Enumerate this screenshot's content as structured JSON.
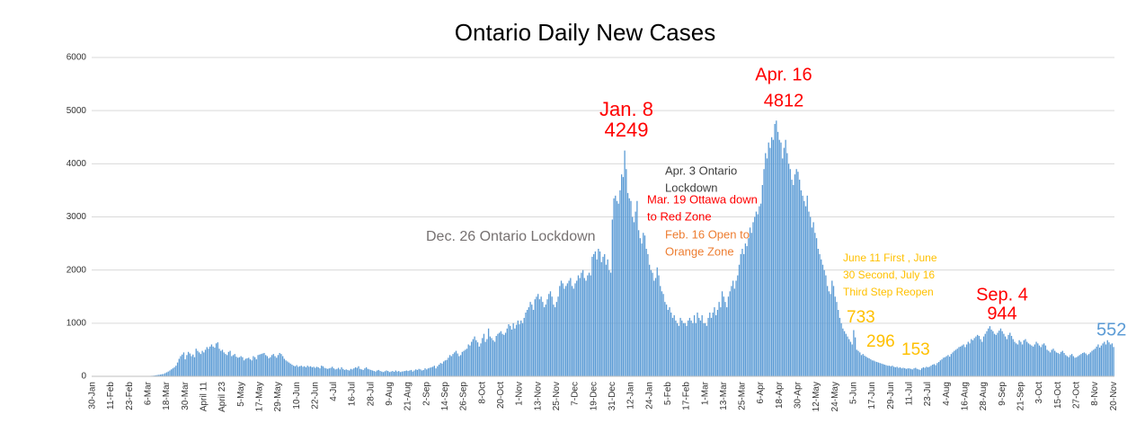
{
  "chart_data": {
    "type": "bar",
    "title": "Ontario Daily New Cases",
    "color": "#5b9bd5",
    "grid": true,
    "ylim": [
      0,
      6000
    ],
    "yticks": [
      0,
      1000,
      2000,
      3000,
      4000,
      5000,
      6000
    ],
    "categories": [
      "30-Jan",
      null,
      null,
      null,
      null,
      null,
      null,
      null,
      null,
      null,
      null,
      null,
      "11-Feb",
      null,
      null,
      null,
      null,
      null,
      null,
      null,
      null,
      null,
      null,
      null,
      "23-Feb",
      null,
      null,
      null,
      null,
      null,
      null,
      null,
      null,
      null,
      null,
      null,
      "6-Mar",
      null,
      null,
      null,
      null,
      null,
      null,
      null,
      null,
      null,
      null,
      null,
      "18-Mar",
      null,
      null,
      null,
      null,
      null,
      null,
      null,
      null,
      null,
      null,
      null,
      "30-Mar",
      null,
      null,
      null,
      null,
      null,
      null,
      null,
      null,
      null,
      null,
      null,
      "April 11",
      null,
      null,
      null,
      null,
      null,
      null,
      null,
      null,
      null,
      null,
      null,
      "April 23",
      null,
      null,
      null,
      null,
      null,
      null,
      null,
      null,
      null,
      null,
      null,
      "5-May",
      null,
      null,
      null,
      null,
      null,
      null,
      null,
      null,
      null,
      null,
      null,
      "17-May",
      null,
      null,
      null,
      null,
      null,
      null,
      null,
      null,
      null,
      null,
      null,
      "29-May",
      null,
      null,
      null,
      null,
      null,
      null,
      null,
      null,
      null,
      null,
      null,
      "10-Jun",
      null,
      null,
      null,
      null,
      null,
      null,
      null,
      null,
      null,
      null,
      null,
      "22-Jun",
      null,
      null,
      null,
      null,
      null,
      null,
      null,
      null,
      null,
      null,
      null,
      "4-Jul",
      null,
      null,
      null,
      null,
      null,
      null,
      null,
      null,
      null,
      null,
      null,
      "16-Jul",
      null,
      null,
      null,
      null,
      null,
      null,
      null,
      null,
      null,
      null,
      null,
      "28-Jul",
      null,
      null,
      null,
      null,
      null,
      null,
      null,
      null,
      null,
      null,
      null,
      "9-Aug",
      null,
      null,
      null,
      null,
      null,
      null,
      null,
      null,
      null,
      null,
      null,
      "21-Aug",
      null,
      null,
      null,
      null,
      null,
      null,
      null,
      null,
      null,
      null,
      null,
      "2-Sep",
      null,
      null,
      null,
      null,
      null,
      null,
      null,
      null,
      null,
      null,
      null,
      "14-Sep",
      null,
      null,
      null,
      null,
      null,
      null,
      null,
      null,
      null,
      null,
      null,
      "26-Sep",
      null,
      null,
      null,
      null,
      null,
      null,
      null,
      null,
      null,
      null,
      null,
      "8-Oct",
      null,
      null,
      null,
      null,
      null,
      null,
      null,
      null,
      null,
      null,
      null,
      "20-Oct",
      null,
      null,
      null,
      null,
      null,
      null,
      null,
      null,
      null,
      null,
      null,
      "1-Nov",
      null,
      null,
      null,
      null,
      null,
      null,
      null,
      null,
      null,
      null,
      null,
      "13-Nov",
      null,
      null,
      null,
      null,
      null,
      null,
      null,
      null,
      null,
      null,
      null,
      "25-Nov",
      null,
      null,
      null,
      null,
      null,
      null,
      null,
      null,
      null,
      null,
      null,
      "7-Dec",
      null,
      null,
      null,
      null,
      null,
      null,
      null,
      null,
      null,
      null,
      null,
      "19-Dec",
      null,
      null,
      null,
      null,
      null,
      null,
      null,
      null,
      null,
      null,
      null,
      "31-Dec",
      null,
      null,
      null,
      null,
      null,
      null,
      null,
      null,
      null,
      null,
      null,
      "12-Jan",
      null,
      null,
      null,
      null,
      null,
      null,
      null,
      null,
      null,
      null,
      null,
      "24-Jan",
      null,
      null,
      null,
      null,
      null,
      null,
      null,
      null,
      null,
      null,
      null,
      "5-Feb",
      null,
      null,
      null,
      null,
      null,
      null,
      null,
      null,
      null,
      null,
      null,
      "17-Feb",
      null,
      null,
      null,
      null,
      null,
      null,
      null,
      null,
      null,
      null,
      null,
      "1-Mar",
      null,
      null,
      null,
      null,
      null,
      null,
      null,
      null,
      null,
      null,
      null,
      "13-Mar",
      null,
      null,
      null,
      null,
      null,
      null,
      null,
      null,
      null,
      null,
      null,
      "25-Mar",
      null,
      null,
      null,
      null,
      null,
      null,
      null,
      null,
      null,
      null,
      null,
      "6-Apr",
      null,
      null,
      null,
      null,
      null,
      null,
      null,
      null,
      null,
      null,
      null,
      "18-Apr",
      null,
      null,
      null,
      null,
      null,
      null,
      null,
      null,
      null,
      null,
      null,
      "30-Apr",
      null,
      null,
      null,
      null,
      null,
      null,
      null,
      null,
      null,
      null,
      null,
      "12-May",
      null,
      null,
      null,
      null,
      null,
      null,
      null,
      null,
      null,
      null,
      null,
      "24-May",
      null,
      null,
      null,
      null,
      null,
      null,
      null,
      null,
      null,
      null,
      null,
      "5-Jun",
      null,
      null,
      null,
      null,
      null,
      null,
      null,
      null,
      null,
      null,
      null,
      "17-Jun",
      null,
      null,
      null,
      null,
      null,
      null,
      null,
      null,
      null,
      null,
      null,
      "29-Jun",
      null,
      null,
      null,
      null,
      null,
      null,
      null,
      null,
      null,
      null,
      null,
      "11-Jul",
      null,
      null,
      null,
      null,
      null,
      null,
      null,
      null,
      null,
      null,
      null,
      "23-Jul",
      null,
      null,
      null,
      null,
      null,
      null,
      null,
      null,
      null,
      null,
      null,
      "4-Aug",
      null,
      null,
      null,
      null,
      null,
      null,
      null,
      null,
      null,
      null,
      null,
      "16-Aug",
      null,
      null,
      null,
      null,
      null,
      null,
      null,
      null,
      null,
      null,
      null,
      "28-Aug",
      null,
      null,
      null,
      null,
      null,
      null,
      null,
      null,
      null,
      null,
      null,
      "9-Sep",
      null,
      null,
      null,
      null,
      null,
      null,
      null,
      null,
      null,
      null,
      null,
      "21-Sep",
      null,
      null,
      null,
      null,
      null,
      null,
      null,
      null,
      null,
      null,
      null,
      "3-Oct",
      null,
      null,
      null,
      null,
      null,
      null,
      null,
      null,
      null,
      null,
      null,
      "15-Oct",
      null,
      null,
      null,
      null,
      null,
      null,
      null,
      null,
      null,
      null,
      null,
      "27-Oct",
      null,
      null,
      null,
      null,
      null,
      null,
      null,
      null,
      null,
      null,
      null,
      "8-Nov",
      null,
      null,
      null,
      null,
      null,
      null,
      null,
      null,
      null,
      null,
      null,
      "20-Nov"
    ],
    "values": [
      1,
      0,
      0,
      0,
      0,
      0,
      0,
      0,
      0,
      0,
      0,
      0,
      0,
      0,
      1,
      0,
      0,
      0,
      0,
      0,
      0,
      0,
      0,
      0,
      0,
      1,
      0,
      1,
      2,
      3,
      1,
      4,
      2,
      3,
      4,
      5,
      8,
      6,
      10,
      12,
      15,
      20,
      25,
      30,
      34,
      40,
      45,
      60,
      75,
      90,
      110,
      130,
      150,
      170,
      200,
      260,
      330,
      380,
      410,
      450,
      320,
      400,
      460,
      430,
      380,
      410,
      360,
      520,
      480,
      450,
      420,
      480,
      450,
      500,
      550,
      520,
      560,
      600,
      560,
      540,
      620,
      640,
      520,
      480,
      500,
      450,
      420,
      400,
      460,
      480,
      380,
      400,
      420,
      370,
      350,
      360,
      380,
      360,
      300,
      330,
      340,
      350,
      320,
      300,
      380,
      360,
      320,
      400,
      410,
      420,
      430,
      440,
      400,
      380,
      340,
      360,
      400,
      420,
      380,
      350,
      400,
      440,
      420,
      380,
      330,
      300,
      280,
      260,
      240,
      220,
      200,
      190,
      210,
      180,
      190,
      200,
      180,
      190,
      170,
      200,
      180,
      190,
      170,
      180,
      160,
      180,
      170,
      150,
      200,
      190,
      160,
      150,
      140,
      150,
      160,
      180,
      150,
      130,
      140,
      160,
      130,
      170,
      140,
      120,
      130,
      120,
      110,
      140,
      130,
      150,
      170,
      160,
      190,
      140,
      130,
      120,
      150,
      170,
      140,
      130,
      120,
      110,
      100,
      90,
      110,
      120,
      100,
      90,
      80,
      95,
      110,
      100,
      80,
      90,
      100,
      85,
      110,
      90,
      100,
      80,
      90,
      95,
      100,
      110,
      100,
      110,
      120,
      90,
      110,
      130,
      120,
      140,
      130,
      110,
      120,
      150,
      130,
      150,
      160,
      170,
      180,
      200,
      150,
      190,
      220,
      250,
      240,
      280,
      300,
      310,
      350,
      400,
      380,
      420,
      450,
      480,
      430,
      380,
      400,
      460,
      480,
      500,
      520,
      600,
      580,
      650,
      700,
      750,
      680,
      640,
      560,
      620,
      720,
      800,
      650,
      700,
      900,
      750,
      720,
      680,
      650,
      760,
      800,
      820,
      850,
      800,
      780,
      820,
      900,
      980,
      950,
      880,
      1000,
      900,
      970,
      1050,
      980,
      1050,
      1000,
      1100,
      1200,
      1250,
      1300,
      1400,
      1350,
      1250,
      1450,
      1500,
      1550,
      1450,
      1500,
      1400,
      1300,
      1350,
      1450,
      1550,
      1600,
      1500,
      1350,
      1300,
      1400,
      1500,
      1700,
      1800,
      1750,
      1650,
      1700,
      1750,
      1800,
      1850,
      1700,
      1650,
      1750,
      1800,
      1900,
      1850,
      1950,
      2000,
      1850,
      1800,
      1900,
      1950,
      1900,
      2250,
      2300,
      2350,
      2200,
      2400,
      2350,
      2150,
      2250,
      2300,
      2100,
      2200,
      2000,
      1950,
      2950,
      3350,
      3400,
      3300,
      3250,
      3500,
      3800,
      3750,
      4249,
      3900,
      3450,
      3350,
      3300,
      3000,
      2900,
      3100,
      3300,
      2750,
      2600,
      2500,
      2700,
      2650,
      2400,
      2300,
      2100,
      2000,
      1950,
      1800,
      1850,
      2050,
      1900,
      1700,
      1600,
      1550,
      1400,
      1350,
      1250,
      1300,
      1200,
      1100,
      1150,
      1050,
      1000,
      950,
      1100,
      1050,
      1000,
      1000,
      950,
      1050,
      1100,
      1050,
      1000,
      1150,
      1000,
      1200,
      1100,
      1050,
      1150,
      1000,
      1000,
      950,
      1100,
      1200,
      1100,
      1200,
      1300,
      1150,
      1250,
      1400,
      1300,
      1600,
      1500,
      1400,
      1300,
      1500,
      1600,
      1700,
      1800,
      1650,
      1800,
      1900,
      2100,
      2300,
      2400,
      2300,
      2500,
      2450,
      2600,
      2800,
      2700,
      2900,
      3000,
      3100,
      3050,
      3200,
      3250,
      3600,
      3900,
      4200,
      4100,
      4400,
      4300,
      4500,
      4450,
      4750,
      4812,
      4600,
      4450,
      4400,
      4100,
      4300,
      4450,
      4200,
      4000,
      3900,
      3700,
      3600,
      3800,
      3900,
      3850,
      3700,
      3500,
      3400,
      3300,
      3200,
      3400,
      3100,
      3000,
      2800,
      2900,
      2700,
      2600,
      2400,
      2300,
      2200,
      2100,
      2000,
      1900,
      1700,
      1600,
      1550,
      1800,
      1700,
      1500,
      1400,
      1250,
      1100,
      1000,
      900,
      850,
      800,
      750,
      700,
      650,
      600,
      870,
      733,
      500,
      480,
      450,
      400,
      420,
      390,
      370,
      350,
      340,
      320,
      300,
      296,
      280,
      270,
      260,
      250,
      240,
      230,
      220,
      210,
      200,
      200,
      190,
      200,
      180,
      170,
      180,
      160,
      170,
      150,
      160,
      153,
      140,
      150,
      150,
      140,
      130,
      150,
      160,
      140,
      130,
      120,
      150,
      170,
      160,
      180,
      170,
      180,
      200,
      220,
      230,
      210,
      250,
      270,
      300,
      320,
      350,
      360,
      380,
      400,
      370,
      420,
      450,
      480,
      500,
      520,
      550,
      560,
      580,
      600,
      550,
      600,
      650,
      620,
      700,
      680,
      720,
      750,
      780,
      760,
      700,
      650,
      750,
      800,
      850,
      900,
      944,
      880,
      850,
      800,
      780,
      820,
      860,
      900,
      850,
      800,
      750,
      700,
      780,
      820,
      760,
      700,
      650,
      620,
      600,
      680,
      650,
      600,
      680,
      700,
      650,
      620,
      600,
      580,
      560,
      600,
      650,
      620,
      580,
      550,
      600,
      620,
      580,
      500,
      480,
      450,
      500,
      520,
      480,
      450,
      440,
      420,
      460,
      480,
      440,
      400,
      380,
      360,
      400,
      420,
      380,
      350,
      360,
      380,
      400,
      420,
      440,
      450,
      430,
      400,
      420,
      450,
      480,
      500,
      520,
      560,
      600,
      540,
      580,
      620,
      650,
      600,
      680,
      640,
      600,
      620,
      552
    ],
    "annotations": [
      {
        "lines": [
          "Jan. 8",
          "4249"
        ],
        "color": "#ff0000"
      },
      {
        "lines": [
          "Apr. 16",
          "4812"
        ],
        "color": "#ff0000"
      },
      {
        "lines": [
          "Dec. 26 Ontario Lockdown"
        ],
        "color": "#767171"
      },
      {
        "lines": [
          "Apr. 3 Ontario",
          "Lockdown"
        ],
        "color": "#404040"
      },
      {
        "lines": [
          "Mar. 19 Ottawa down",
          "to Red Zone"
        ],
        "color": "#ff0000"
      },
      {
        "lines": [
          "Feb. 16 Open to",
          "Orange Zone"
        ],
        "color": "#ed7d31"
      },
      {
        "lines": [
          "June 11 First , June",
          "30 Second, July 16",
          "Third Step Reopen"
        ],
        "color": "#ffc000"
      },
      {
        "lines": [
          "733"
        ],
        "color": "#ffc000"
      },
      {
        "lines": [
          "296"
        ],
        "color": "#ffc000"
      },
      {
        "lines": [
          "153"
        ],
        "color": "#ffc000"
      },
      {
        "lines": [
          "Sep. 4",
          "944"
        ],
        "color": "#ff0000"
      },
      {
        "lines": [
          "552"
        ],
        "color": "#5b9bd5"
      }
    ]
  }
}
